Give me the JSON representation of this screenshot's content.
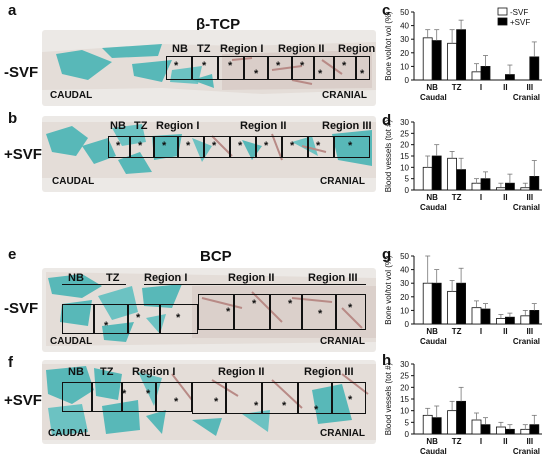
{
  "figure": {
    "titles": {
      "tcp": "β-TCP",
      "bcp": "BCP"
    },
    "row_labels": {
      "minus": "-SVF",
      "plus": "+SVF"
    },
    "panels": {
      "a": "a",
      "b": "b",
      "c": "c",
      "d": "d",
      "e": "e",
      "f": "f",
      "g": "g",
      "h": "h"
    },
    "orientation": {
      "caudal": "CAUDAL",
      "cranial": "CRANIAL"
    },
    "zones": {
      "nb": "NB",
      "tz": "TZ",
      "r1": "Region I",
      "r2": "Region II",
      "r3": "Region III"
    },
    "asterisk": "*",
    "colors": {
      "bone": "#58b8b8",
      "tissue": "#b88a86",
      "minus_bar": "#ffffff",
      "plus_bar": "#000000"
    }
  },
  "chart_data": [
    {
      "panel": "c",
      "type": "bar",
      "ylabel": "Bone vol/tot vol (%)",
      "ylim": [
        0,
        50
      ],
      "yticks": [
        0,
        10,
        20,
        30,
        40,
        50
      ],
      "categories": [
        "NB",
        "TZ",
        "I",
        "II",
        "III"
      ],
      "caudal": "Caudal",
      "cranial": "Cranial",
      "legend": [
        "-SVF",
        "+SVF"
      ],
      "series": [
        {
          "name": "-SVF",
          "values": [
            31,
            27,
            6,
            0,
            0
          ],
          "errors": [
            6,
            10,
            6,
            0,
            0
          ]
        },
        {
          "name": "+SVF",
          "values": [
            29,
            37,
            10,
            4,
            17
          ],
          "errors": [
            8,
            7,
            8,
            7,
            11
          ]
        }
      ]
    },
    {
      "panel": "d",
      "type": "bar",
      "ylabel": "Blood vessels (tot #)",
      "ylim": [
        0,
        30
      ],
      "yticks": [
        0,
        5,
        10,
        15,
        20,
        25,
        30
      ],
      "categories": [
        "NB",
        "TZ",
        "I",
        "II",
        "III"
      ],
      "caudal": "Caudal",
      "cranial": "Cranial",
      "series": [
        {
          "name": "-SVF",
          "values": [
            10,
            14,
            3,
            1,
            1
          ],
          "errors": [
            5,
            3,
            2,
            2,
            2
          ]
        },
        {
          "name": "+SVF",
          "values": [
            15,
            9,
            5,
            3,
            6
          ],
          "errors": [
            5,
            5,
            3,
            4,
            7
          ]
        }
      ]
    },
    {
      "panel": "g",
      "type": "bar",
      "ylabel": "Bone vol/tot vol (%)",
      "ylim": [
        0,
        50
      ],
      "yticks": [
        0,
        10,
        20,
        30,
        40,
        50
      ],
      "categories": [
        "NB",
        "TZ",
        "I",
        "II",
        "III"
      ],
      "caudal": "Caudal",
      "cranial": "Cranial",
      "series": [
        {
          "name": "-SVF",
          "values": [
            30,
            24,
            12,
            4,
            6
          ],
          "errors": [
            20,
            8,
            5,
            3,
            4
          ]
        },
        {
          "name": "+SVF",
          "values": [
            30,
            30,
            11,
            5,
            10
          ],
          "errors": [
            10,
            11,
            4,
            3,
            5
          ]
        }
      ]
    },
    {
      "panel": "h",
      "type": "bar",
      "ylabel": "Blood vessels (tot #)",
      "ylim": [
        0,
        30
      ],
      "yticks": [
        0,
        5,
        10,
        15,
        20,
        25,
        30
      ],
      "categories": [
        "NB",
        "TZ",
        "I",
        "II",
        "III"
      ],
      "caudal": "Caudal",
      "cranial": "Cranial",
      "series": [
        {
          "name": "-SVF",
          "values": [
            8,
            10,
            6,
            3,
            2
          ],
          "errors": [
            3,
            4,
            3,
            2,
            2
          ]
        },
        {
          "name": "+SVF",
          "values": [
            7,
            14,
            4,
            2,
            4
          ],
          "errors": [
            5,
            6,
            3,
            2,
            4
          ]
        }
      ]
    }
  ]
}
